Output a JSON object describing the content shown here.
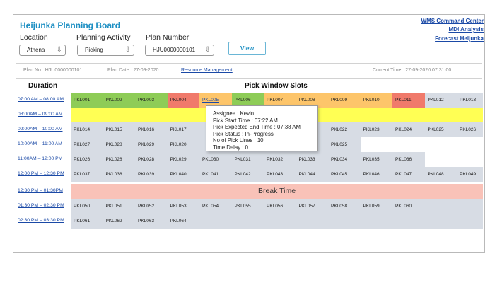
{
  "colors": {
    "title": "#1d8fc3",
    "link": "#1a49a6",
    "green": "#8ecc57",
    "red": "#f07a6b",
    "orange": "#fdc56a",
    "yellow": "#ffff54",
    "grey": "#d7dce4",
    "break": "#f9c2b8"
  },
  "header": {
    "title": "Heijunka Planning Board",
    "links": [
      "WMS Command Center",
      "MDI Analysis",
      "Forecast Heijunka"
    ]
  },
  "filters": {
    "location_label": "Location",
    "location_value": "Athena",
    "activity_label": "Planning Activity",
    "activity_value": "Picking",
    "plan_label": "Plan Number",
    "plan_value": "HJU0000000101",
    "view_button": "View",
    "dropdown_arrow": "⇩"
  },
  "info_bar": {
    "plan_no": "Plan No : HJU0000000101",
    "plan_date": "Plan Date : 27-09-2020",
    "resource_link": "Resource Management",
    "current_time": "Current Time : 27-09-2020  07:31:00"
  },
  "grid": {
    "duration_header": "Duration",
    "slots_header": "Pick Window Slots",
    "rows": [
      {
        "time": "07:00 AM – 08:00 AM",
        "cells": [
          {
            "label": "PKL001",
            "status": "green"
          },
          {
            "label": "PKL002",
            "status": "green"
          },
          {
            "label": "PKL003",
            "status": "green"
          },
          {
            "label": "PKL004",
            "status": "red"
          },
          {
            "label": "PKL005",
            "status": "orange",
            "link": true
          },
          {
            "label": "PKL006",
            "status": "green"
          },
          {
            "label": "PKL007",
            "status": "orange"
          },
          {
            "label": "PKL008",
            "status": "orange"
          },
          {
            "label": "PKL009",
            "status": "orange"
          },
          {
            "label": "PKL010",
            "status": "orange"
          },
          {
            "label": "PKL011",
            "status": "red"
          },
          {
            "label": "PKL012",
            "status": "grey"
          },
          {
            "label": "PKL013",
            "status": "grey"
          }
        ]
      },
      {
        "time": "08:00AM – 09:00 AM",
        "full": {
          "status": "yellow",
          "text": ""
        }
      },
      {
        "time": "09:00AM – 10:00 AM",
        "cells": [
          {
            "label": "PKL014",
            "status": "grey"
          },
          {
            "label": "PKL015",
            "status": "grey"
          },
          {
            "label": "PKL016",
            "status": "grey"
          },
          {
            "label": "PKL017",
            "status": "grey"
          },
          {
            "label": "",
            "status": "grey"
          },
          {
            "label": "",
            "status": "grey"
          },
          {
            "label": "",
            "status": "grey"
          },
          {
            "label": "",
            "status": "grey"
          },
          {
            "label": "PKL022",
            "status": "grey"
          },
          {
            "label": "PKL023",
            "status": "grey"
          },
          {
            "label": "PKL024",
            "status": "grey"
          },
          {
            "label": "PKL025",
            "status": "grey"
          },
          {
            "label": "PKL026",
            "status": "grey"
          }
        ]
      },
      {
        "time": "10:00AM – 11:00 AM",
        "cells": [
          {
            "label": "PKL027",
            "status": "grey"
          },
          {
            "label": "PKL028",
            "status": "grey"
          },
          {
            "label": "PKL029",
            "status": "grey"
          },
          {
            "label": "PKL020",
            "status": "grey"
          },
          {
            "label": "",
            "status": "grey"
          },
          {
            "label": "",
            "status": "grey"
          },
          {
            "label": "",
            "status": "grey"
          },
          {
            "label": "",
            "status": "grey"
          },
          {
            "label": "PKL025",
            "status": "grey"
          },
          {
            "label": "",
            "status": "none"
          },
          {
            "label": "",
            "status": "none"
          },
          {
            "label": "",
            "status": "none"
          },
          {
            "label": "",
            "status": "none"
          }
        ]
      },
      {
        "time": "11:00AM – 12:00 PM",
        "cells": [
          {
            "label": "PKL026",
            "status": "grey"
          },
          {
            "label": "PKL028",
            "status": "grey"
          },
          {
            "label": "PKL028",
            "status": "grey"
          },
          {
            "label": "PKL029",
            "status": "grey"
          },
          {
            "label": "PKL030",
            "status": "grey"
          },
          {
            "label": "PKL031",
            "status": "grey"
          },
          {
            "label": "PKL032",
            "status": "grey"
          },
          {
            "label": "PKL033",
            "status": "grey"
          },
          {
            "label": "PKL034",
            "status": "grey"
          },
          {
            "label": "PKL035",
            "status": "grey"
          },
          {
            "label": "PKL036",
            "status": "grey"
          },
          {
            "label": "",
            "status": "none"
          },
          {
            "label": "",
            "status": "none"
          }
        ]
      },
      {
        "time": "12:00 PM – 12:30 PM",
        "cells": [
          {
            "label": "PKL037",
            "status": "grey"
          },
          {
            "label": "PKL038",
            "status": "grey"
          },
          {
            "label": "PKL039",
            "status": "grey"
          },
          {
            "label": "PKL040",
            "status": "grey"
          },
          {
            "label": "PKL041",
            "status": "grey"
          },
          {
            "label": "PKL042",
            "status": "grey"
          },
          {
            "label": "PKL043",
            "status": "grey"
          },
          {
            "label": "PKL044",
            "status": "grey"
          },
          {
            "label": "PKL045",
            "status": "grey"
          },
          {
            "label": "PKL046",
            "status": "grey"
          },
          {
            "label": "PKL047",
            "status": "grey"
          },
          {
            "label": "PKL048",
            "status": "grey"
          },
          {
            "label": "PKL049",
            "status": "grey"
          }
        ]
      },
      {
        "time": "12:30 PM – 01:30PM",
        "full": {
          "status": "break",
          "text": "Break Time"
        }
      },
      {
        "time": "01:30 PM – 02:30 PM",
        "cells": [
          {
            "label": "PKL050",
            "status": "grey"
          },
          {
            "label": "PKL051",
            "status": "grey"
          },
          {
            "label": "PKL052",
            "status": "grey"
          },
          {
            "label": "PKL053",
            "status": "grey"
          },
          {
            "label": "PKL054",
            "status": "grey"
          },
          {
            "label": "PKL055",
            "status": "grey"
          },
          {
            "label": "PKL056",
            "status": "grey"
          },
          {
            "label": "PKL057",
            "status": "grey"
          },
          {
            "label": "PKL058",
            "status": "grey"
          },
          {
            "label": "PKL059",
            "status": "grey"
          },
          {
            "label": "PKL060",
            "status": "grey"
          },
          {
            "label": "",
            "status": "grey"
          },
          {
            "label": "",
            "status": "grey"
          }
        ]
      },
      {
        "time": "02:30 PM – 03:30 PM",
        "cells": [
          {
            "label": "PKL061",
            "status": "grey"
          },
          {
            "label": "PKL062",
            "status": "grey"
          },
          {
            "label": "PKL063",
            "status": "grey"
          },
          {
            "label": "PKL064",
            "status": "grey"
          },
          {
            "label": "",
            "status": "grey"
          },
          {
            "label": "",
            "status": "grey"
          },
          {
            "label": "",
            "status": "grey"
          },
          {
            "label": "",
            "status": "grey"
          },
          {
            "label": "",
            "status": "grey"
          },
          {
            "label": "",
            "status": "grey"
          },
          {
            "label": "",
            "status": "grey"
          },
          {
            "label": "",
            "status": "grey"
          },
          {
            "label": "",
            "status": "grey"
          }
        ]
      }
    ]
  },
  "tooltip": {
    "assignee": "Assignee : Kevin",
    "start": "Pick Start Time : 07:22 AM",
    "end": "Pick Expected End Time : 07:38 AM",
    "status": "Pick Status : In-Progress",
    "lines": "No of Pick Lines : 10",
    "delay": "Time Delay :  0"
  }
}
